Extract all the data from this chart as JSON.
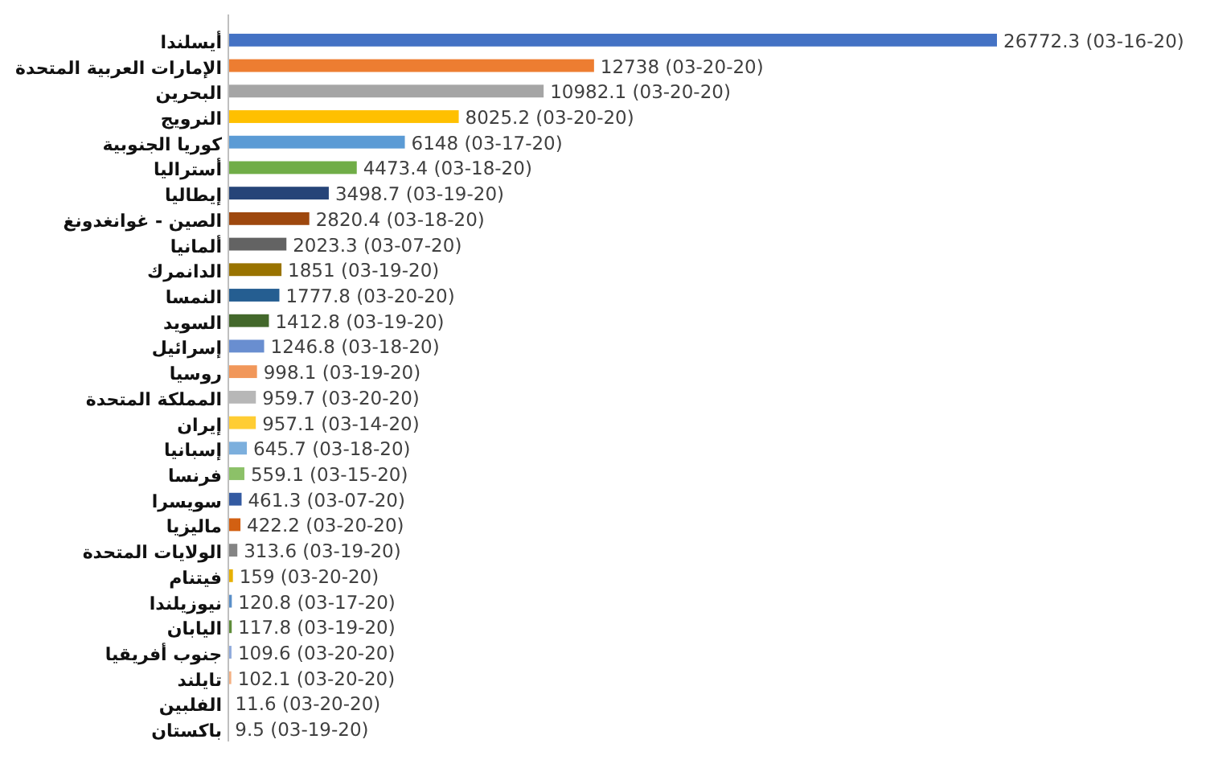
{
  "chart_data": {
    "type": "bar",
    "orientation": "horizontal",
    "categories": [
      "أيسلندا",
      "الإمارات العربية المتحدة",
      "البحرين",
      "النرويج",
      "كوريا الجنوبية",
      "أستراليا",
      "إيطاليا",
      "الصين - غوانغدونغ",
      "ألمانيا",
      "الدانمرك",
      "النمسا",
      "السويد",
      "إسرائيل",
      "روسيا",
      "المملكة المتحدة",
      "إيران",
      "إسبانيا",
      "فرنسا",
      "سويسرا",
      "ماليزيا",
      "الولايات المتحدة",
      "فيتنام",
      "نيوزيلندا",
      "اليابان",
      "جنوب أفريقيا",
      "تايلند",
      "الفلبين",
      "باكستان"
    ],
    "values": [
      26772.3,
      12738,
      10982.1,
      8025.2,
      6148,
      4473.4,
      3498.7,
      2820.4,
      2023.3,
      1851,
      1777.8,
      1412.8,
      1246.8,
      998.1,
      959.7,
      957.1,
      645.7,
      559.1,
      461.3,
      422.2,
      313.6,
      159,
      120.8,
      117.8,
      109.6,
      102.1,
      11.6,
      9.5
    ],
    "value_labels": [
      "26772.3 (03-16-20)",
      "12738 (03-20-20)",
      "10982.1 (03-20-20)",
      "8025.2 (03-20-20)",
      "6148 (03-17-20)",
      "4473.4 (03-18-20)",
      "3498.7 (03-19-20)",
      "2820.4 (03-18-20)",
      "2023.3 (03-07-20)",
      "1851 (03-19-20)",
      "1777.8 (03-20-20)",
      "1412.8 (03-19-20)",
      "1246.8 (03-18-20)",
      "998.1 (03-19-20)",
      "959.7 (03-20-20)",
      "957.1 (03-14-20)",
      "645.7 (03-18-20)",
      "559.1 (03-15-20)",
      "461.3 (03-07-20)",
      "422.2 (03-20-20)",
      "313.6 (03-19-20)",
      "159 (03-20-20)",
      "120.8 (03-17-20)",
      "117.8 (03-19-20)",
      "109.6 (03-20-20)",
      "102.1 (03-20-20)",
      "11.6 (03-20-20)",
      "9.5 (03-19-20)"
    ],
    "colors": [
      "#4472c4",
      "#ed7d31",
      "#a5a5a5",
      "#ffc000",
      "#5b9bd5",
      "#70ad47",
      "#264478",
      "#9e480e",
      "#636363",
      "#997300",
      "#255e91",
      "#43682b",
      "#698ed0",
      "#f1975a",
      "#b7b7b7",
      "#ffcd33",
      "#7cafdd",
      "#8cc168",
      "#335aa1",
      "#d26012",
      "#848484",
      "#e6b000",
      "#5a8fc8",
      "#5e8c3a",
      "#8faadc",
      "#f4b183",
      "#a9a9a9",
      "#ffd966"
    ]
  }
}
